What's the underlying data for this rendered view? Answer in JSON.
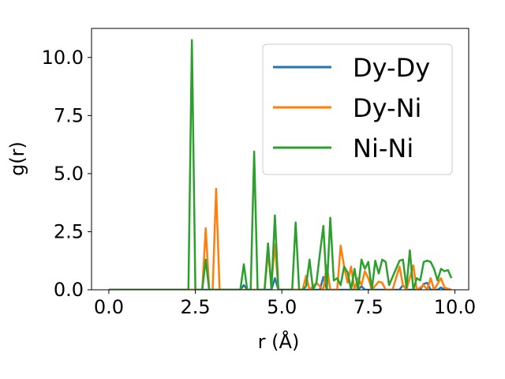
{
  "chart_data": {
    "type": "line",
    "title": "",
    "xlabel": "r (Å)",
    "ylabel": "g(r)",
    "xlim": [
      -0.5,
      10.4
    ],
    "ylim": [
      0,
      11.25
    ],
    "x_ticks": [
      "0.0",
      "2.5",
      "5.0",
      "7.5",
      "10.0"
    ],
    "y_ticks": [
      "0.0",
      "2.5",
      "5.0",
      "7.5",
      "10.0"
    ],
    "grid": false,
    "legend_position": "top-right",
    "series": [
      {
        "name": "Dy-Dy",
        "color": "#1f77b4",
        "points": [
          [
            0,
            0
          ],
          [
            3.8,
            0
          ],
          [
            3.9,
            0.2
          ],
          [
            4.0,
            0
          ],
          [
            4.7,
            0
          ],
          [
            4.8,
            0.5
          ],
          [
            4.9,
            0
          ],
          [
            6.1,
            0
          ],
          [
            6.2,
            0.55
          ],
          [
            6.3,
            0
          ],
          [
            7.2,
            0
          ],
          [
            7.3,
            0.15
          ],
          [
            7.4,
            0
          ],
          [
            8.4,
            0
          ],
          [
            8.5,
            0.2
          ],
          [
            8.6,
            0
          ],
          [
            9.0,
            0
          ],
          [
            9.1,
            0.25
          ],
          [
            9.2,
            0.3
          ],
          [
            9.3,
            0
          ],
          [
            9.5,
            0
          ],
          [
            9.6,
            0.1
          ],
          [
            9.7,
            0
          ],
          [
            9.9,
            0
          ]
        ]
      },
      {
        "name": "Dy-Ni",
        "color": "#ff7f0e",
        "points": [
          [
            0,
            0
          ],
          [
            2.7,
            0
          ],
          [
            2.8,
            2.65
          ],
          [
            2.9,
            0
          ],
          [
            3.0,
            0
          ],
          [
            3.1,
            4.35
          ],
          [
            3.2,
            0
          ],
          [
            4.5,
            0
          ],
          [
            4.6,
            1.6
          ],
          [
            4.7,
            0.3
          ],
          [
            4.8,
            1.95
          ],
          [
            4.9,
            0
          ],
          [
            5.6,
            0
          ],
          [
            5.7,
            0.6
          ],
          [
            5.8,
            0
          ],
          [
            6.0,
            0.3
          ],
          [
            6.2,
            0
          ],
          [
            6.3,
            1.05
          ],
          [
            6.4,
            0
          ],
          [
            6.6,
            0
          ],
          [
            6.7,
            1.9
          ],
          [
            6.8,
            1.0
          ],
          [
            6.9,
            0.3
          ],
          [
            7.0,
            1.0
          ],
          [
            7.1,
            0
          ],
          [
            7.2,
            0.5
          ],
          [
            7.3,
            0.2
          ],
          [
            7.4,
            0.8
          ],
          [
            7.5,
            0.5
          ],
          [
            7.6,
            0
          ],
          [
            7.8,
            0.35
          ],
          [
            7.9,
            0.3
          ],
          [
            8.0,
            0
          ],
          [
            8.2,
            0
          ],
          [
            8.3,
            0.5
          ],
          [
            8.4,
            1.0
          ],
          [
            8.5,
            0.2
          ],
          [
            8.6,
            0
          ],
          [
            8.8,
            1.05
          ],
          [
            8.9,
            0
          ],
          [
            9.1,
            0.2
          ],
          [
            9.2,
            0
          ],
          [
            9.3,
            0.5
          ],
          [
            9.4,
            0
          ],
          [
            9.6,
            0.5
          ],
          [
            9.7,
            0.1
          ],
          [
            9.9,
            0
          ]
        ]
      },
      {
        "name": "Ni-Ni",
        "color": "#2ca02c",
        "points": [
          [
            0,
            0
          ],
          [
            2.3,
            0
          ],
          [
            2.4,
            10.75
          ],
          [
            2.5,
            0
          ],
          [
            2.7,
            0
          ],
          [
            2.8,
            1.3
          ],
          [
            2.9,
            0
          ],
          [
            3.8,
            0
          ],
          [
            3.9,
            1.1
          ],
          [
            4.0,
            0
          ],
          [
            4.1,
            0
          ],
          [
            4.2,
            5.95
          ],
          [
            4.3,
            0
          ],
          [
            4.5,
            0
          ],
          [
            4.6,
            2.0
          ],
          [
            4.7,
            0
          ],
          [
            4.8,
            3.2
          ],
          [
            4.9,
            0
          ],
          [
            5.3,
            0
          ],
          [
            5.4,
            2.9
          ],
          [
            5.5,
            0
          ],
          [
            5.6,
            0
          ],
          [
            5.7,
            0.15
          ],
          [
            5.8,
            1.3
          ],
          [
            5.9,
            0
          ],
          [
            6.0,
            0.3
          ],
          [
            6.1,
            1.55
          ],
          [
            6.2,
            2.75
          ],
          [
            6.3,
            0
          ],
          [
            6.4,
            3.1
          ],
          [
            6.5,
            0.4
          ],
          [
            6.6,
            0.5
          ],
          [
            6.7,
            0.2
          ],
          [
            6.8,
            1.0
          ],
          [
            6.9,
            0.75
          ],
          [
            7.0,
            0
          ],
          [
            7.1,
            0.9
          ],
          [
            7.2,
            0
          ],
          [
            7.3,
            1.3
          ],
          [
            7.4,
            0.9
          ],
          [
            7.5,
            1.2
          ],
          [
            7.6,
            0
          ],
          [
            7.7,
            1.25
          ],
          [
            7.8,
            0.7
          ],
          [
            7.9,
            1.3
          ],
          [
            8.0,
            1.2
          ],
          [
            8.1,
            0.2
          ],
          [
            8.2,
            0.55
          ],
          [
            8.3,
            0.9
          ],
          [
            8.4,
            1.25
          ],
          [
            8.5,
            1.3
          ],
          [
            8.6,
            0.1
          ],
          [
            8.7,
            1.7
          ],
          [
            8.8,
            0
          ],
          [
            8.9,
            0.5
          ],
          [
            9.0,
            0.4
          ],
          [
            9.1,
            1.2
          ],
          [
            9.2,
            1.25
          ],
          [
            9.3,
            1.2
          ],
          [
            9.4,
            0.9
          ],
          [
            9.5,
            0.4
          ],
          [
            9.6,
            0.9
          ],
          [
            9.7,
            0.8
          ],
          [
            9.8,
            0.85
          ],
          [
            9.9,
            0.5
          ]
        ]
      }
    ]
  }
}
